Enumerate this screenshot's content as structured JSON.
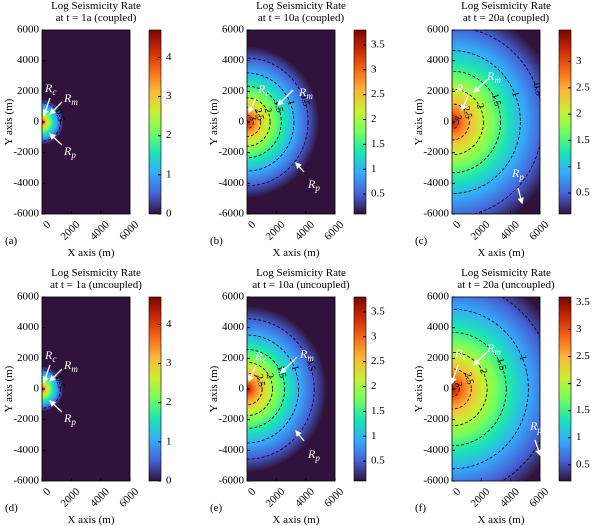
{
  "colormap": [
    "#30123b",
    "#4662d7",
    "#36aaf9",
    "#1ae4b6",
    "#72fe5e",
    "#c8ef34",
    "#faba39",
    "#f66b19",
    "#ca2a04",
    "#7a0403"
  ],
  "chart_data": [
    {
      "type": "heatmap",
      "title": "Log Seismicity Rate",
      "subtitle": "at t = 1a (coupled)",
      "panel": "(a)",
      "xlabel": "X axis (m)",
      "ylabel": "Y axis (m)",
      "xlim": [
        0,
        6000
      ],
      "ylim": [
        -6000,
        6000
      ],
      "xticks": [
        0,
        2000,
        4000,
        6000
      ],
      "yticks": [
        -6000,
        -4000,
        -2000,
        0,
        2000,
        4000,
        6000
      ],
      "clim": [
        0,
        4.7
      ],
      "cticks": [
        0,
        1,
        2,
        3,
        4
      ],
      "contours": [
        0.5
      ],
      "annotations": [
        {
          "base": "R",
          "sub": "c"
        },
        {
          "base": "R",
          "sub": "m"
        },
        {
          "base": "R",
          "sub": "p"
        }
      ]
    },
    {
      "type": "heatmap",
      "title": "Log Seismicity Rate",
      "subtitle": "at t = 10a (coupled)",
      "panel": "(b)",
      "xlabel": "X axis (m)",
      "ylabel": "Y axis (m)",
      "xlim": [
        0,
        6000
      ],
      "ylim": [
        -6000,
        6000
      ],
      "xticks": [
        0,
        2000,
        4000,
        6000
      ],
      "yticks": [
        -6000,
        -4000,
        -2000,
        0,
        2000,
        4000,
        6000
      ],
      "clim": [
        0.1,
        3.8
      ],
      "cticks": [
        0.5,
        1,
        1.5,
        2,
        2.5,
        3,
        3.5
      ],
      "contours": [
        0.5,
        1,
        1.5,
        2,
        2.5,
        3
      ],
      "annotations": [
        {
          "base": "R",
          "sub": "c"
        },
        {
          "base": "R",
          "sub": "m"
        },
        {
          "base": "R",
          "sub": "p"
        }
      ]
    },
    {
      "type": "heatmap",
      "title": "Log Seismicity Rate",
      "subtitle": "at t = 20a (coupled)",
      "panel": "(c)",
      "xlabel": "X axis (m)",
      "ylabel": "Y axis (m)",
      "xlim": [
        0,
        6000
      ],
      "ylim": [
        -6000,
        6000
      ],
      "xticks": [
        0,
        2000,
        4000,
        6000
      ],
      "yticks": [
        -6000,
        -4000,
        -2000,
        0,
        2000,
        4000,
        6000
      ],
      "clim": [
        0.1,
        3.6
      ],
      "cticks": [
        0.5,
        1,
        1.5,
        2,
        2.5,
        3
      ],
      "contours": [
        0.5,
        1,
        1.5,
        2,
        2.5,
        3
      ],
      "annotations": [
        {
          "base": "R",
          "sub": "c"
        },
        {
          "base": "R",
          "sub": "m"
        },
        {
          "base": "R",
          "sub": "p"
        }
      ]
    },
    {
      "type": "heatmap",
      "title": "Log Seismicity Rate",
      "subtitle": "at t = 1a (uncoupled)",
      "panel": "(d)",
      "xlabel": "X axis (m)",
      "ylabel": "Y axis (m)",
      "xlim": [
        0,
        6000
      ],
      "ylim": [
        -6000,
        6000
      ],
      "xticks": [
        0,
        2000,
        4000,
        6000
      ],
      "yticks": [
        -6000,
        -4000,
        -2000,
        0,
        2000,
        4000,
        6000
      ],
      "clim": [
        0,
        4.7
      ],
      "cticks": [
        0,
        1,
        2,
        3,
        4
      ],
      "contours": [
        0.5
      ],
      "annotations": [
        {
          "base": "R",
          "sub": "c"
        },
        {
          "base": "R",
          "sub": "m"
        },
        {
          "base": "R",
          "sub": "p"
        }
      ]
    },
    {
      "type": "heatmap",
      "title": "Log Seismicity Rate",
      "subtitle": "at t = 10a (uncoupled)",
      "panel": "(e)",
      "xlabel": "X axis (m)",
      "ylabel": "Y axis (m)",
      "xlim": [
        0,
        6000
      ],
      "ylim": [
        -6000,
        6000
      ],
      "xticks": [
        0,
        2000,
        4000,
        6000
      ],
      "yticks": [
        -6000,
        -4000,
        -2000,
        0,
        2000,
        4000,
        6000
      ],
      "clim": [
        0.1,
        3.8
      ],
      "cticks": [
        0.5,
        1,
        1.5,
        2,
        2.5,
        3,
        3.5
      ],
      "contours": [
        0.5,
        1,
        1.5,
        2,
        2.5
      ],
      "annotations": [
        {
          "base": "R",
          "sub": "c"
        },
        {
          "base": "R",
          "sub": "m"
        },
        {
          "base": "R",
          "sub": "p"
        }
      ]
    },
    {
      "type": "heatmap",
      "title": "Log Seismicity Rate",
      "subtitle": "at t = 20a (uncoupled)",
      "panel": "(f)",
      "xlabel": "X axis (m)",
      "ylabel": "Y axis (m)",
      "xlim": [
        0,
        6000
      ],
      "ylim": [
        -6000,
        6000
      ],
      "xticks": [
        0,
        2000,
        4000,
        6000
      ],
      "yticks": [
        -6000,
        -4000,
        -2000,
        0,
        2000,
        4000,
        6000
      ],
      "clim": [
        0.2,
        3.6
      ],
      "cticks": [
        0.5,
        1,
        1.5,
        2,
        2.5,
        3,
        3.5
      ],
      "contours": [
        0.5,
        1,
        1.5,
        2,
        2.5,
        3
      ],
      "annotations": [
        {
          "base": "R",
          "sub": "c"
        },
        {
          "base": "R",
          "sub": "m"
        },
        {
          "base": "R",
          "sub": "p"
        }
      ]
    }
  ]
}
